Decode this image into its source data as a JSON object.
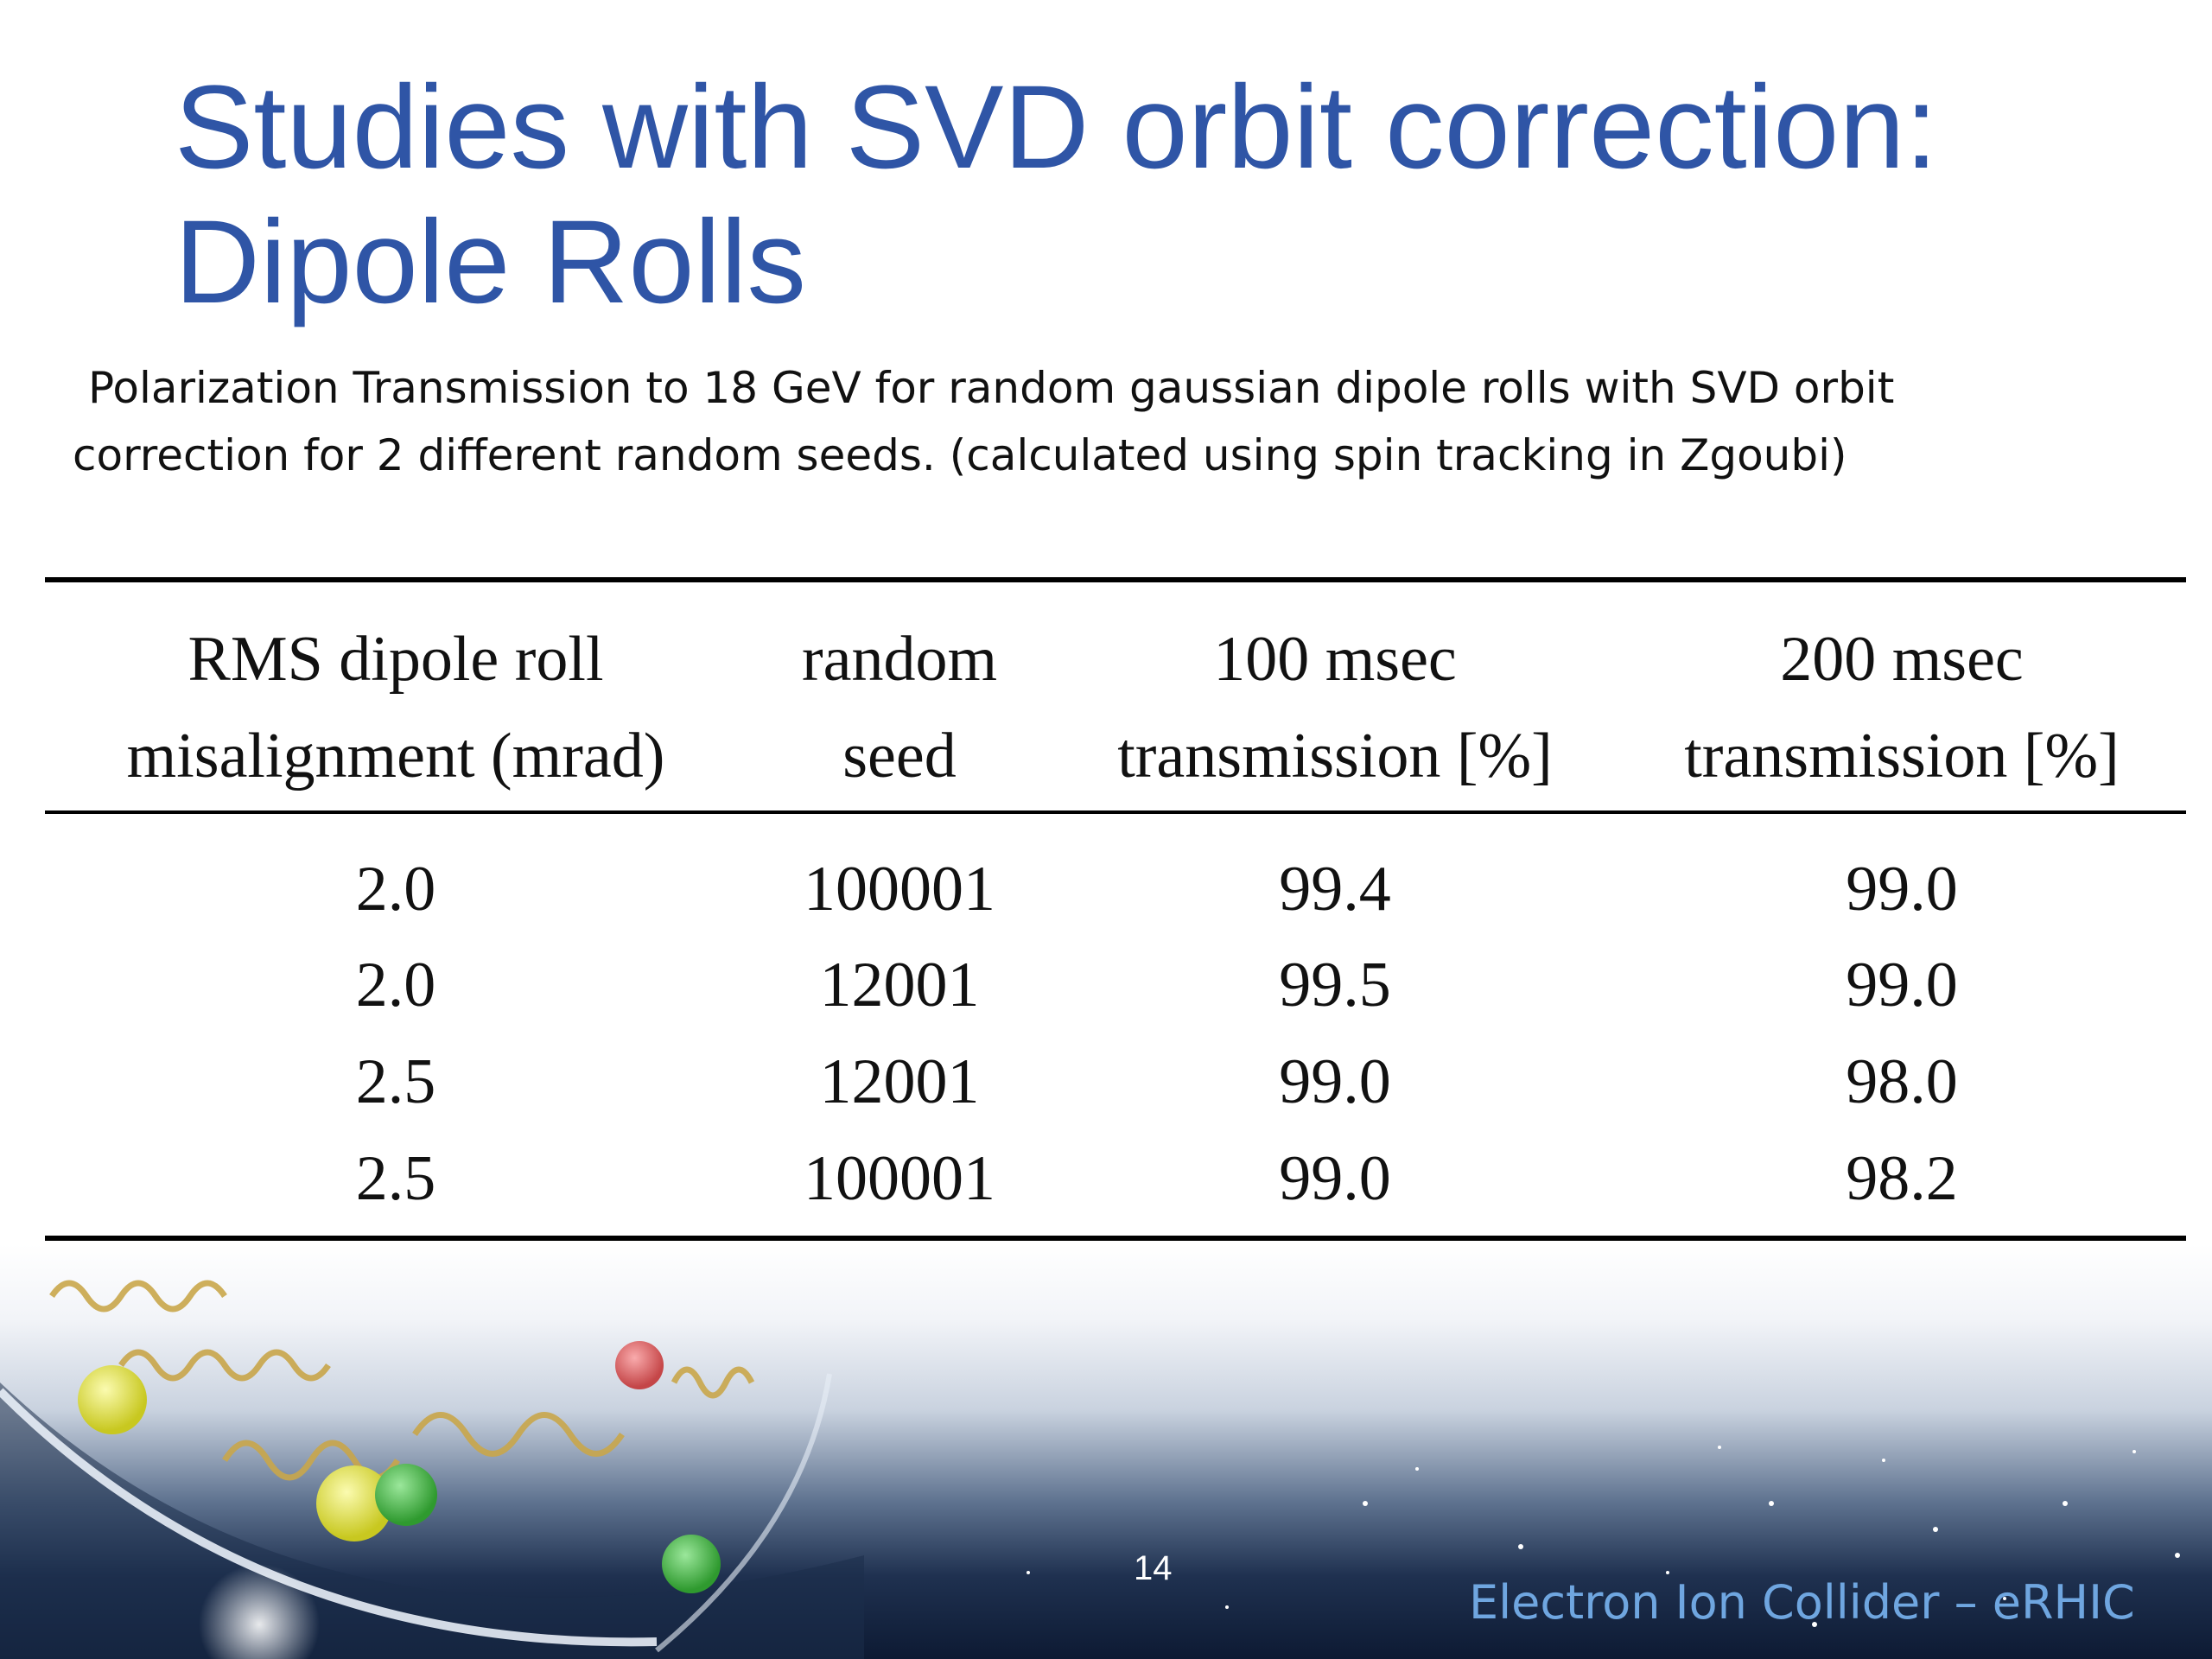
{
  "slide": {
    "title_line1": "Studies with SVD orbit correction:",
    "title_line2": "Dipole Rolls",
    "subtitle_line1": "Polarization Transmission to 18 GeV for random gaussian dipole rolls with SVD orbit",
    "subtitle_line2": "correction for 2 different random seeds. (calculated using spin tracking in Zgoubi)",
    "page_number": "14",
    "footer_brand": "Electron Ion Collider – eRHIC"
  },
  "table": {
    "headers": [
      {
        "line1": "RMS dipole roll",
        "line2": "misalignment (mrad)"
      },
      {
        "line1": "random",
        "line2": "seed"
      },
      {
        "line1": "100 msec",
        "line2": "transmission [%]"
      },
      {
        "line1": "200 msec",
        "line2": "transmission [%]"
      }
    ],
    "rows": [
      [
        "2.0",
        "100001",
        "99.4",
        "99.0"
      ],
      [
        "2.0",
        "12001",
        "99.5",
        "99.0"
      ],
      [
        "2.5",
        "12001",
        "99.0",
        "98.0"
      ],
      [
        "2.5",
        "100001",
        "99.0",
        "98.2"
      ]
    ]
  },
  "colors": {
    "title": "#2f55a6",
    "footer_brand": "#6fa6e0"
  }
}
